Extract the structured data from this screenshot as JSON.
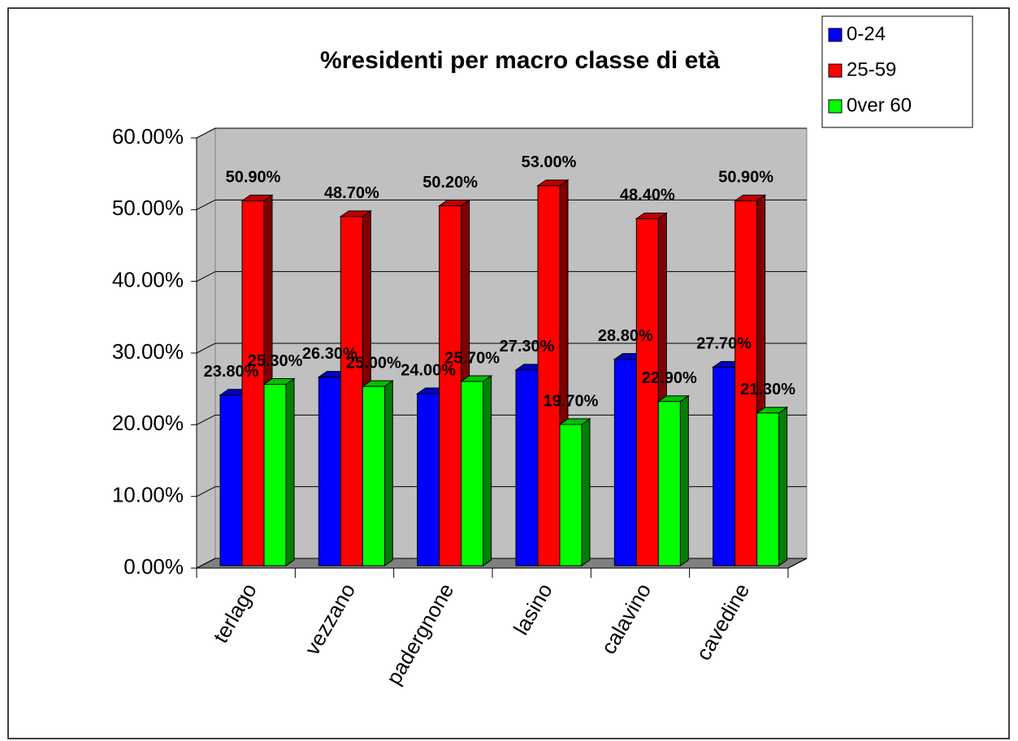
{
  "chart_data": {
    "type": "bar3d",
    "title": "%residenti per macro classe di età",
    "categories": [
      "terlago",
      "vezzano",
      "padergnone",
      "lasino",
      "calavino",
      "cavedine"
    ],
    "series": [
      {
        "name": "0-24",
        "color": "#0000ff",
        "values": [
          23.8,
          26.3,
          24.0,
          27.3,
          28.8,
          27.7
        ],
        "value_labels": [
          "23.80%",
          "26.30%",
          "24.00%",
          "27.30%",
          "28.80%",
          "27.70%"
        ]
      },
      {
        "name": "25-59",
        "color": "#ff0000",
        "values": [
          50.9,
          48.7,
          50.2,
          53.0,
          48.4,
          50.9
        ],
        "value_labels": [
          "50.90%",
          "48.70%",
          "50.20%",
          "53.00%",
          "48.40%",
          "50.90%"
        ]
      },
      {
        "name": "0ver 60",
        "color": "#00ff00",
        "values": [
          25.3,
          25.0,
          25.7,
          19.7,
          22.9,
          21.3
        ],
        "value_labels": [
          "25.30%",
          "25.00%",
          "25.70%",
          "19.70%",
          "22.90%",
          "21.30%"
        ]
      }
    ],
    "ylim": [
      0,
      60
    ],
    "yticks": [
      {
        "value": 0,
        "label": "0.00%"
      },
      {
        "value": 10,
        "label": "10.00%"
      },
      {
        "value": 20,
        "label": "20.00%"
      },
      {
        "value": 30,
        "label": "30.00%"
      },
      {
        "value": 40,
        "label": "40.00%"
      },
      {
        "value": 50,
        "label": "50.00%"
      },
      {
        "value": 60,
        "label": "60.00%"
      }
    ],
    "grid": true,
    "legend": "top-right"
  }
}
